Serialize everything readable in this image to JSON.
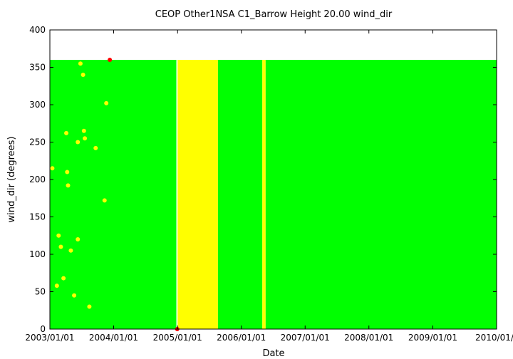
{
  "chart_data": {
    "type": "scatter",
    "title": "CEOP Other1NSA C1_Barrow Height 20.00 wind_dir",
    "xlabel": "Date",
    "ylabel": "wind_dir (degrees)",
    "xlim": [
      "2003/01/01",
      "2010/01/01"
    ],
    "ylim": [
      0,
      400
    ],
    "x_ticks": [
      "2003/01/01",
      "2004/01/01",
      "2005/01/01",
      "2006/01/01",
      "2007/01/01",
      "2008/01/01",
      "2009/01/01",
      "2010/01/01"
    ],
    "y_ticks": [
      0,
      50,
      100,
      150,
      200,
      250,
      300,
      350,
      400
    ],
    "grid": false,
    "legend": "none",
    "series_colors": {
      "good": "#00ff00",
      "questionable": "#ffff00",
      "bad": "#ff0000"
    },
    "dense_bands": [
      {
        "color": "#00ff00",
        "x_start": "2003/01/01",
        "x_end": "2004/12/25",
        "y_min": 0,
        "y_max": 360
      },
      {
        "color": "#ffff00",
        "x_start": "2005/01/01",
        "x_end": "2005/08/20",
        "y_min": 0,
        "y_max": 360
      },
      {
        "color": "#00ff00",
        "x_start": "2005/08/20",
        "x_end": "2006/05/01",
        "y_min": 0,
        "y_max": 360
      },
      {
        "color": "#ffff00",
        "x_start": "2006/05/01",
        "x_end": "2006/05/20",
        "y_min": 0,
        "y_max": 360
      },
      {
        "color": "#00ff00",
        "x_start": "2006/05/20",
        "x_end": "2010/01/01",
        "y_min": 0,
        "y_max": 360
      }
    ],
    "sparse_points": [
      {
        "x": "2003/01/15",
        "y": 215,
        "color": "#ffff00"
      },
      {
        "x": "2003/02/10",
        "y": 58,
        "color": "#ffff00"
      },
      {
        "x": "2003/02/20",
        "y": 125,
        "color": "#ffff00"
      },
      {
        "x": "2003/03/05",
        "y": 110,
        "color": "#ffff00"
      },
      {
        "x": "2003/03/20",
        "y": 68,
        "color": "#ffff00"
      },
      {
        "x": "2003/04/05",
        "y": 262,
        "color": "#ffff00"
      },
      {
        "x": "2003/04/10",
        "y": 210,
        "color": "#ffff00"
      },
      {
        "x": "2003/04/15",
        "y": 192,
        "color": "#ffff00"
      },
      {
        "x": "2003/05/01",
        "y": 105,
        "color": "#ffff00"
      },
      {
        "x": "2003/05/20",
        "y": 45,
        "color": "#ffff00"
      },
      {
        "x": "2003/06/10",
        "y": 120,
        "color": "#ffff00"
      },
      {
        "x": "2003/06/10",
        "y": 250,
        "color": "#ffff00"
      },
      {
        "x": "2003/06/25",
        "y": 355,
        "color": "#ffff00"
      },
      {
        "x": "2003/07/10",
        "y": 340,
        "color": "#ffff00"
      },
      {
        "x": "2003/07/15",
        "y": 265,
        "color": "#ffff00"
      },
      {
        "x": "2003/07/20",
        "y": 255,
        "color": "#ffff00"
      },
      {
        "x": "2003/08/15",
        "y": 30,
        "color": "#ffff00"
      },
      {
        "x": "2003/09/20",
        "y": 242,
        "color": "#ffff00"
      },
      {
        "x": "2003/11/10",
        "y": 172,
        "color": "#ffff00"
      },
      {
        "x": "2003/11/20",
        "y": 302,
        "color": "#ffff00"
      },
      {
        "x": "2003/12/10",
        "y": 360,
        "color": "#ff0000"
      },
      {
        "x": "2004/12/30",
        "y": 0,
        "color": "#ff0000"
      }
    ]
  }
}
